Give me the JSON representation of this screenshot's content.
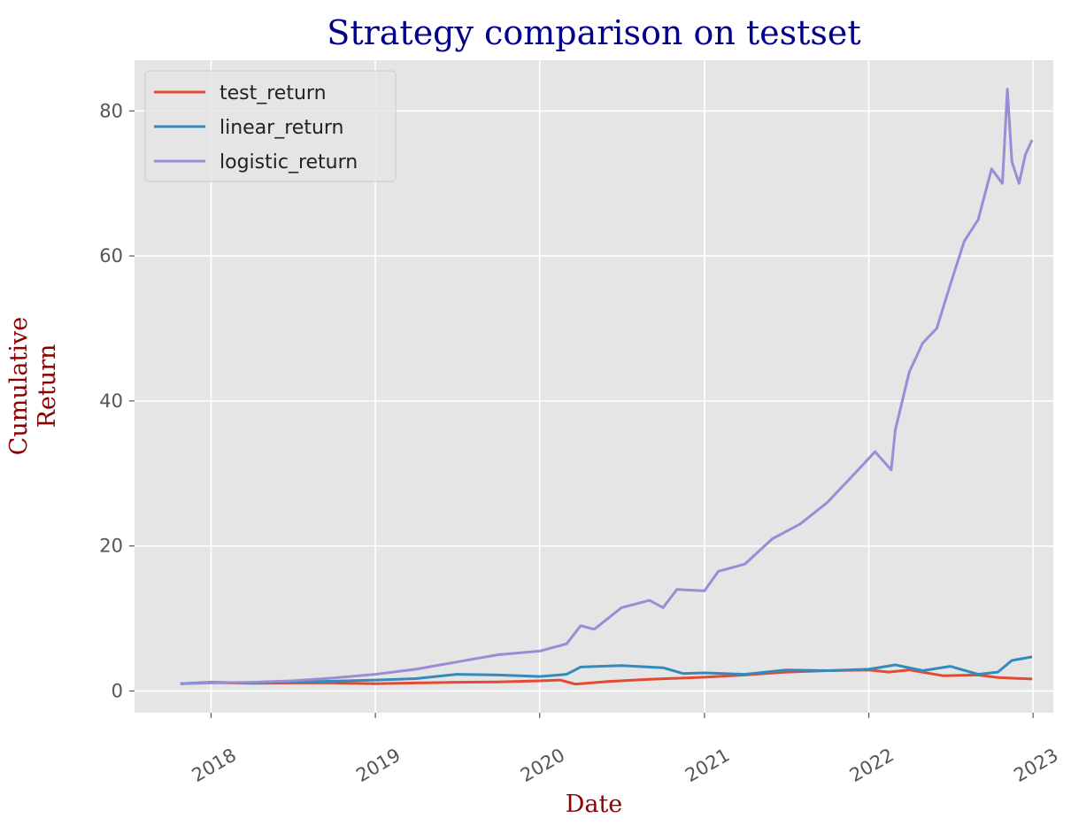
{
  "chart_data": {
    "type": "line",
    "title": "Strategy comparison on testset",
    "xlabel": "Date",
    "ylabel": "Cumulative\nReturn",
    "xlim": [
      "2017-07-15",
      "2023-02-15"
    ],
    "ylim": [
      -3,
      87
    ],
    "yticks": [
      0,
      20,
      40,
      60,
      80
    ],
    "xticks": [
      "2018-01-01",
      "2019-01-01",
      "2020-01-01",
      "2021-01-01",
      "2022-01-01",
      "2023-01-01"
    ],
    "xtick_labels": [
      "2018",
      "2019",
      "2020",
      "2021",
      "2022",
      "2023"
    ],
    "grid": true,
    "legend_position": "top-left",
    "colors": {
      "plot_background": "#e5e5e5",
      "grid": "#ffffff",
      "title": "#00008b",
      "axis_label": "#8b0000"
    },
    "series": [
      {
        "name": "test_return",
        "color": "#e24a33",
        "points": [
          [
            "2017-10-25",
            1.0
          ],
          [
            "2018-01-01",
            1.15
          ],
          [
            "2018-04-01",
            1.05
          ],
          [
            "2018-07-01",
            1.1
          ],
          [
            "2018-10-01",
            1.1
          ],
          [
            "2019-01-01",
            1.0
          ],
          [
            "2019-04-01",
            1.1
          ],
          [
            "2019-07-01",
            1.2
          ],
          [
            "2019-10-01",
            1.25
          ],
          [
            "2020-01-01",
            1.4
          ],
          [
            "2020-02-15",
            1.5
          ],
          [
            "2020-03-20",
            0.95
          ],
          [
            "2020-06-01",
            1.3
          ],
          [
            "2020-09-01",
            1.6
          ],
          [
            "2020-11-01",
            1.75
          ],
          [
            "2021-01-01",
            1.9
          ],
          [
            "2021-04-01",
            2.2
          ],
          [
            "2021-07-01",
            2.6
          ],
          [
            "2021-10-01",
            2.8
          ],
          [
            "2022-01-01",
            2.9
          ],
          [
            "2022-02-15",
            2.6
          ],
          [
            "2022-04-01",
            2.9
          ],
          [
            "2022-06-15",
            2.1
          ],
          [
            "2022-09-01",
            2.2
          ],
          [
            "2022-10-15",
            1.85
          ],
          [
            "2022-12-30",
            1.65
          ]
        ]
      },
      {
        "name": "linear_return",
        "color": "#348abd",
        "points": [
          [
            "2017-10-25",
            1.0
          ],
          [
            "2018-01-01",
            1.2
          ],
          [
            "2018-04-01",
            1.1
          ],
          [
            "2018-07-01",
            1.25
          ],
          [
            "2018-10-01",
            1.35
          ],
          [
            "2019-01-01",
            1.5
          ],
          [
            "2019-04-01",
            1.7
          ],
          [
            "2019-07-01",
            2.3
          ],
          [
            "2019-10-01",
            2.2
          ],
          [
            "2020-01-01",
            2.0
          ],
          [
            "2020-03-01",
            2.3
          ],
          [
            "2020-04-01",
            3.3
          ],
          [
            "2020-07-01",
            3.5
          ],
          [
            "2020-10-01",
            3.2
          ],
          [
            "2020-11-15",
            2.4
          ],
          [
            "2021-01-01",
            2.5
          ],
          [
            "2021-04-01",
            2.3
          ],
          [
            "2021-07-01",
            2.9
          ],
          [
            "2021-10-01",
            2.8
          ],
          [
            "2022-01-01",
            3.0
          ],
          [
            "2022-03-01",
            3.6
          ],
          [
            "2022-05-01",
            2.8
          ],
          [
            "2022-07-01",
            3.4
          ],
          [
            "2022-09-01",
            2.3
          ],
          [
            "2022-10-15",
            2.6
          ],
          [
            "2022-11-15",
            4.2
          ],
          [
            "2022-12-30",
            4.7
          ]
        ]
      },
      {
        "name": "logistic_return",
        "color": "#988ed5",
        "points": [
          [
            "2017-10-25",
            1.0
          ],
          [
            "2018-01-01",
            1.1
          ],
          [
            "2018-04-01",
            1.2
          ],
          [
            "2018-07-01",
            1.4
          ],
          [
            "2018-10-01",
            1.8
          ],
          [
            "2019-01-01",
            2.3
          ],
          [
            "2019-04-01",
            3.0
          ],
          [
            "2019-07-01",
            4.0
          ],
          [
            "2019-10-01",
            5.0
          ],
          [
            "2020-01-01",
            5.5
          ],
          [
            "2020-03-01",
            6.5
          ],
          [
            "2020-04-01",
            9.0
          ],
          [
            "2020-05-01",
            8.5
          ],
          [
            "2020-07-01",
            11.5
          ],
          [
            "2020-09-01",
            12.5
          ],
          [
            "2020-10-01",
            11.5
          ],
          [
            "2020-11-01",
            14.0
          ],
          [
            "2021-01-01",
            13.8
          ],
          [
            "2021-02-01",
            16.5
          ],
          [
            "2021-04-01",
            17.5
          ],
          [
            "2021-06-01",
            21.0
          ],
          [
            "2021-08-01",
            23.0
          ],
          [
            "2021-10-01",
            26.0
          ],
          [
            "2021-12-01",
            30.0
          ],
          [
            "2022-01-15",
            33.0
          ],
          [
            "2022-02-20",
            30.5
          ],
          [
            "2022-03-01",
            36.0
          ],
          [
            "2022-04-01",
            44.0
          ],
          [
            "2022-05-01",
            48.0
          ],
          [
            "2022-06-01",
            50.0
          ],
          [
            "2022-07-01",
            56.0
          ],
          [
            "2022-08-01",
            62.0
          ],
          [
            "2022-09-01",
            65.0
          ],
          [
            "2022-10-01",
            72.0
          ],
          [
            "2022-10-25",
            70.0
          ],
          [
            "2022-11-05",
            83.0
          ],
          [
            "2022-11-15",
            73.0
          ],
          [
            "2022-12-01",
            70.0
          ],
          [
            "2022-12-15",
            74.0
          ],
          [
            "2022-12-30",
            76.0
          ]
        ]
      }
    ]
  }
}
